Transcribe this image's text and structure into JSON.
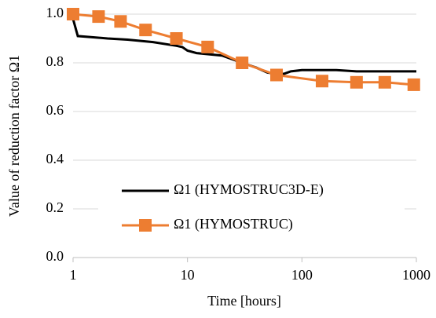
{
  "chart_data": {
    "type": "line",
    "x_label": "Time [hours]",
    "y_label": "Value of reduction factor Ω1",
    "xscale": "log",
    "xlim": [
      1,
      1000
    ],
    "xticks": [
      1,
      10,
      100,
      1000
    ],
    "ylim": [
      0,
      1
    ],
    "yticks": [
      {
        "value": 0,
        "label": "0.0"
      },
      {
        "value": 0.2,
        "label": "0.2"
      },
      {
        "value": 0.4,
        "label": "0.4"
      },
      {
        "value": 0.6,
        "label": "0.6"
      },
      {
        "value": 0.8,
        "label": "0.8"
      },
      {
        "value": 1,
        "label": "1.0"
      }
    ],
    "grid": true,
    "legend": "center-left",
    "series": [
      {
        "name": "Ω1 (HYMOSTRUC3D-E)",
        "color": "#000000",
        "marker": false,
        "x": [
          1,
          1.1,
          1.5,
          2,
          3,
          5,
          8,
          9,
          10,
          12,
          20,
          30,
          40,
          50,
          60,
          70,
          80,
          100,
          200,
          300,
          500,
          1000
        ],
        "values": [
          0.98,
          0.91,
          0.905,
          0.9,
          0.895,
          0.885,
          0.87,
          0.865,
          0.85,
          0.84,
          0.83,
          0.8,
          0.78,
          0.76,
          0.755,
          0.755,
          0.765,
          0.77,
          0.77,
          0.765,
          0.765,
          0.765
        ]
      },
      {
        "name": "Ω1 (HYMOSTRUC)",
        "color": "#ed7d31",
        "marker": true,
        "x": [
          1,
          1.67,
          2.6,
          4.3,
          8,
          15,
          30,
          60,
          150,
          300,
          530,
          950
        ],
        "values": [
          1.0,
          0.99,
          0.97,
          0.935,
          0.9,
          0.865,
          0.8,
          0.75,
          0.725,
          0.72,
          0.72,
          0.71
        ]
      }
    ]
  }
}
